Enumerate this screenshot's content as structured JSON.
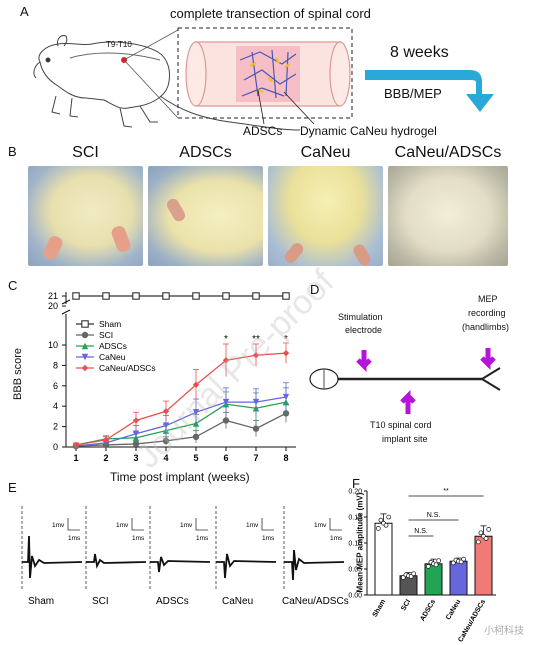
{
  "panelA": {
    "letter": "A",
    "title": "complete transection of spinal cord",
    "vertebra_label": "T9-T10",
    "arrow_label_top": "8 weeks",
    "arrow_label_bottom": "BBB/MEP",
    "callout_adscs": "ADSCs",
    "callout_hydrogel": "Dynamic CaNeu hydrogel"
  },
  "panelB": {
    "letter": "B",
    "groups": [
      "SCI",
      "ADSCs",
      "CaNeu",
      "CaNeu/ADSCs"
    ]
  },
  "panelC": {
    "letter": "C",
    "chart_data": {
      "type": "line",
      "xlabel": "Time post implant (weeks)",
      "ylabel": "BBB score",
      "x": [
        1,
        2,
        3,
        4,
        5,
        6,
        7,
        8
      ],
      "ylim_lower": [
        0,
        12
      ],
      "ylim_upper": [
        20,
        21
      ],
      "yticks_lower": [
        0,
        2,
        4,
        6,
        8,
        10
      ],
      "yticks_upper": [
        20,
        21
      ],
      "series": [
        {
          "name": "Sham",
          "values": [
            21,
            21,
            21,
            21,
            21,
            21,
            21,
            21
          ],
          "errors": [
            0,
            0,
            0,
            0,
            0,
            0,
            0,
            0
          ],
          "color": "#333333",
          "marker": "square-open"
        },
        {
          "name": "SCI",
          "values": [
            0.1,
            0.2,
            0.3,
            0.6,
            1.0,
            2.6,
            1.8,
            3.3
          ],
          "errors": [
            0.1,
            0.2,
            0.3,
            0.4,
            0.6,
            0.8,
            0.8,
            0.9
          ],
          "color": "#666666",
          "marker": "circle"
        },
        {
          "name": "ADSCs",
          "values": [
            0.2,
            0.8,
            0.9,
            1.6,
            2.3,
            4.2,
            3.8,
            4.4
          ],
          "errors": [
            0.2,
            0.3,
            0.5,
            0.6,
            0.9,
            1.2,
            1.5,
            1.4
          ],
          "color": "#23a455",
          "marker": "triangle-up"
        },
        {
          "name": "CaNeu",
          "values": [
            0.1,
            0.4,
            1.3,
            2.1,
            3.4,
            4.4,
            4.4,
            4.9
          ],
          "errors": [
            0.1,
            0.3,
            0.8,
            1.0,
            1.3,
            1.4,
            1.3,
            1.4
          ],
          "color": "#6666dd",
          "marker": "triangle-down"
        },
        {
          "name": "CaNeu/ADSCs",
          "values": [
            0.2,
            0.7,
            2.6,
            3.5,
            6.1,
            8.5,
            9.0,
            9.2
          ],
          "errors": [
            0.2,
            0.3,
            0.8,
            1.0,
            1.5,
            1.6,
            1.1,
            1.0
          ],
          "color": "#e8504f",
          "marker": "diamond"
        }
      ],
      "annotations": [
        {
          "x": 6,
          "text": "*"
        },
        {
          "x": 7,
          "text": "**"
        },
        {
          "x": 8,
          "text": "*"
        }
      ]
    }
  },
  "panelD": {
    "letter": "D",
    "stim_label_1": "Stimulation",
    "stim_label_2": "electrode",
    "mep_label_1": "MEP",
    "mep_label_2": "recording",
    "mep_label_3": "(handlimbs)",
    "implant_label_1": "T10 spinal cord",
    "implant_label_2": "implant site"
  },
  "panelE": {
    "letter": "E",
    "scale_mv": "1mv",
    "scale_ms": "1ms",
    "groups": [
      "Sham",
      "SCI",
      "ADSCs",
      "CaNeu",
      "CaNeu/ADSCs"
    ]
  },
  "panelF": {
    "letter": "F",
    "chart_data": {
      "type": "bar",
      "ylabel": "Mean MEP amplitude (mV)",
      "categories": [
        "Sham",
        "SCI",
        "ADSCs",
        "CaNeu",
        "CaNeu/ADSCs"
      ],
      "values": [
        0.138,
        0.037,
        0.06,
        0.065,
        0.113
      ],
      "errors": [
        0.018,
        0.006,
        0.009,
        0.006,
        0.02
      ],
      "ylim": [
        0,
        0.2
      ],
      "yticks": [
        "0.00",
        "0.05",
        "0.10",
        "0.15",
        "0.20"
      ],
      "colors": [
        "#ffffff",
        "#555555",
        "#23a455",
        "#6666dd",
        "#f07a78"
      ],
      "comparisons": [
        {
          "from": "SCI",
          "to": "ADSCs",
          "text": "N.S."
        },
        {
          "from": "SCI",
          "to": "CaNeu",
          "text": "N.S."
        },
        {
          "from": "SCI",
          "to": "CaNeu/ADSCs",
          "text": "**"
        }
      ]
    }
  },
  "watermark": "Journal Pre-proof",
  "corner_mark": "小柯科技"
}
